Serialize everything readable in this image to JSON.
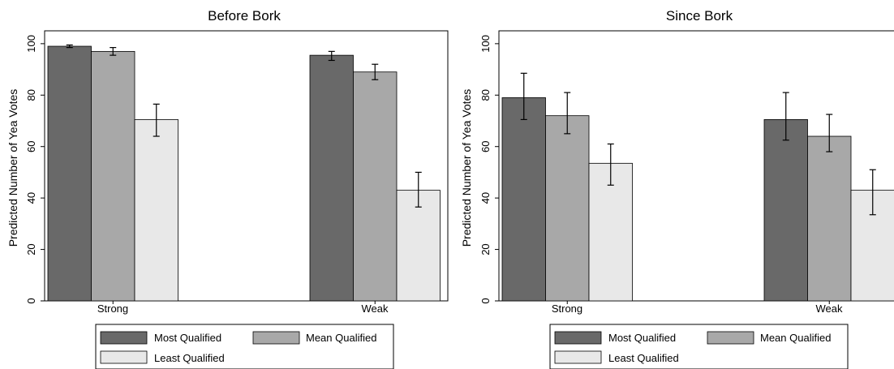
{
  "chart_data": [
    {
      "type": "bar",
      "title": "Before Bork",
      "ylabel": "Predicted Number of Yea Votes",
      "xlabel": "",
      "ylim": [
        0,
        105
      ],
      "yticks": [
        0,
        20,
        40,
        60,
        80,
        100
      ],
      "categories": [
        "Strong",
        "Weak"
      ],
      "series": [
        {
          "name": "Most Qualified",
          "color": "#696969",
          "values": [
            99,
            95.5
          ],
          "err_low": [
            98.5,
            93.5
          ],
          "err_high": [
            99.5,
            97
          ]
        },
        {
          "name": "Mean Qualified",
          "color": "#a8a8a8",
          "values": [
            97,
            89
          ],
          "err_low": [
            95.5,
            86
          ],
          "err_high": [
            98.5,
            92
          ]
        },
        {
          "name": "Least Qualified",
          "color": "#e8e8e8",
          "values": [
            70.5,
            43
          ],
          "err_low": [
            64,
            36.5
          ],
          "err_high": [
            76.5,
            50
          ]
        }
      ],
      "grid": false,
      "legend": "bottom"
    },
    {
      "type": "bar",
      "title": "Since Bork",
      "ylabel": "Predicted Number of Yea Votes",
      "xlabel": "",
      "ylim": [
        0,
        105
      ],
      "yticks": [
        0,
        20,
        40,
        60,
        80,
        100
      ],
      "categories": [
        "Strong",
        "Weak"
      ],
      "series": [
        {
          "name": "Most Qualified",
          "color": "#696969",
          "values": [
            79,
            70.5
          ],
          "err_low": [
            70.5,
            62.5
          ],
          "err_high": [
            88.5,
            81
          ]
        },
        {
          "name": "Mean Qualified",
          "color": "#a8a8a8",
          "values": [
            72,
            64
          ],
          "err_low": [
            65,
            58
          ],
          "err_high": [
            81,
            72.5
          ]
        },
        {
          "name": "Least Qualified",
          "color": "#e8e8e8",
          "values": [
            53.5,
            43
          ],
          "err_low": [
            45,
            33.5
          ],
          "err_high": [
            61,
            51
          ]
        }
      ],
      "grid": false,
      "legend": "bottom"
    }
  ]
}
